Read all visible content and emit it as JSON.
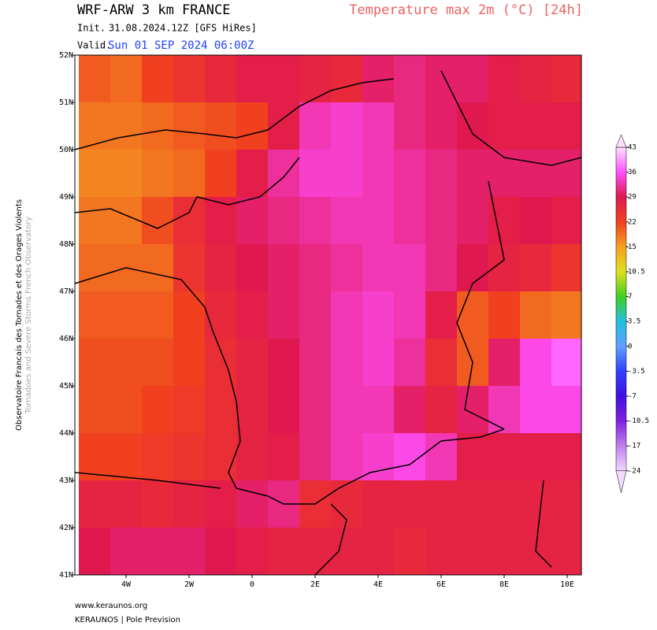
{
  "header": {
    "title": "WRF-ARW 3 km FRANCE",
    "parameter": "Temperature max 2m (°C) [24h]",
    "init_label": "Init.",
    "init": "31.08.2024.12Z [GFS HiRes]",
    "valid_label": "Valid.",
    "valid": "Sun 01 SEP 2024 06:00Z"
  },
  "side": {
    "line1": "Observatoire Francais des Tornades et des Orages Violents",
    "line2": "Tornadoes and Severe Storms French Observatory"
  },
  "footer": {
    "site": "www.keraunos.org",
    "credit": "KERAUNOS | Pole Prevision"
  },
  "map": {
    "xlim": [
      -5.625,
      10.45
    ],
    "ylim": [
      41,
      52
    ],
    "xticks": [
      {
        "value": -4,
        "label": "4W"
      },
      {
        "value": -2,
        "label": "2W"
      },
      0,
      {
        "value": 2,
        "label": "2E"
      },
      {
        "value": 4,
        "label": "4E"
      },
      {
        "value": 6,
        "label": "6E"
      },
      {
        "value": 8,
        "label": "8E"
      },
      {
        "value": 10,
        "label": "10E"
      }
    ],
    "yticks": [
      {
        "value": 41,
        "label": "41N"
      },
      {
        "value": 42,
        "label": "42N"
      },
      {
        "value": 43,
        "label": "43N"
      },
      {
        "value": 44,
        "label": "44N"
      },
      {
        "value": 45,
        "label": "45N"
      },
      {
        "value": 46,
        "label": "46N"
      },
      {
        "value": 47,
        "label": "47N"
      },
      {
        "value": 48,
        "label": "48N"
      },
      {
        "value": 49,
        "label": "49N"
      },
      {
        "value": 50,
        "label": "50N"
      },
      {
        "value": 51,
        "label": "51N"
      },
      {
        "value": 52,
        "label": "52N"
      }
    ],
    "field": {
      "lat": [
        51.5,
        50.5,
        49.5,
        48.5,
        47.5,
        46.5,
        45.5,
        44.5,
        43.5,
        42.5,
        41.5
      ],
      "lon": [
        -5,
        -4,
        -3,
        -2,
        -1,
        0,
        1,
        2,
        3,
        4,
        5,
        6,
        7,
        8,
        9,
        10
      ],
      "values": [
        [
          20,
          19,
          22,
          24,
          26,
          28,
          28,
          27,
          26,
          30,
          31,
          30,
          30,
          28,
          27,
          26
        ],
        [
          18,
          18,
          19,
          20,
          21,
          22,
          28,
          33,
          34,
          33,
          31,
          30,
          29,
          28,
          28,
          28
        ],
        [
          17,
          17,
          18,
          19,
          22,
          28,
          32,
          34,
          34,
          33,
          32,
          31,
          30,
          30,
          30,
          30
        ],
        [
          18,
          18,
          21,
          25,
          28,
          30,
          31,
          32,
          33,
          33,
          32,
          31,
          30,
          28,
          29,
          28
        ],
        [
          19,
          19,
          19,
          24,
          27,
          29,
          30,
          31,
          32,
          33,
          33,
          31,
          29,
          27,
          26,
          24
        ],
        [
          20,
          20,
          20,
          22,
          26,
          28,
          30,
          31,
          33,
          34,
          33,
          28,
          20,
          22,
          19,
          18
        ],
        [
          21,
          21,
          21,
          22,
          25,
          27,
          29,
          31,
          33,
          34,
          32,
          25,
          20,
          30,
          35,
          37
        ],
        [
          21,
          21,
          22,
          23,
          25,
          27,
          29,
          31,
          33,
          33,
          30,
          27,
          30,
          33,
          35,
          35
        ],
        [
          22,
          22,
          23,
          24,
          25,
          27,
          28,
          31,
          33,
          34,
          35,
          33,
          28,
          28,
          28,
          28
        ],
        [
          27,
          27,
          26,
          27,
          28,
          30,
          31,
          25,
          26,
          27,
          27,
          27,
          27,
          27,
          27,
          27
        ],
        [
          29,
          30,
          30,
          30,
          29,
          28,
          27,
          27,
          27,
          27,
          26,
          27,
          27,
          27,
          27,
          27
        ]
      ]
    }
  },
  "colorbar": {
    "ticks": [
      43,
      36,
      29,
      22,
      15,
      10.5,
      7,
      3.5,
      0,
      -3.5,
      -7,
      -10.5,
      -17,
      -24
    ],
    "colors": [
      "#ffe0ff",
      "#ff50ff",
      "#e01850",
      "#f04020",
      "#f5a020",
      "#e0e020",
      "#40d020",
      "#20c0e0",
      "#60a0ff",
      "#3040ff",
      "#4010e0",
      "#8020e0",
      "#c080f0",
      "#f0d8ff"
    ]
  }
}
